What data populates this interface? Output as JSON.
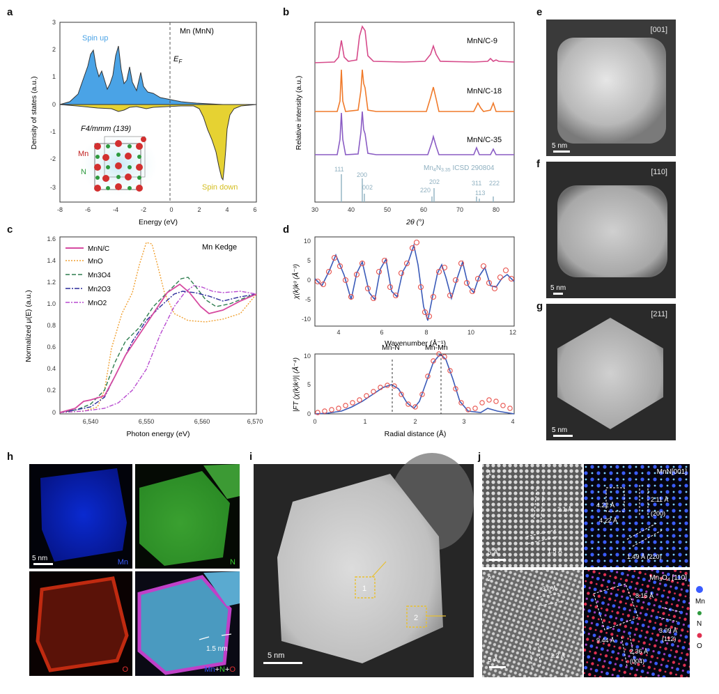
{
  "colors": {
    "spin_up": "#4aa3e6",
    "spin_down": "#e6d232",
    "mnn_c9": "#d64a8a",
    "mnn_c18": "#f07a2a",
    "mnn_c35": "#8a5cc4",
    "ref_line": "#8fb0c0",
    "mnn_c": "#d64aa0",
    "mno": "#f0a030",
    "mn3o4": "#2e7d4f",
    "mn2o3": "#2a2a9a",
    "mno2": "#b84ad0",
    "exp": "#e8504a",
    "fit": "#3a5ab8",
    "inset_box": "#e8c030",
    "overlay_mag": "#d040d0"
  },
  "panel_letters": [
    "a",
    "b",
    "c",
    "d",
    "e",
    "f",
    "g",
    "h",
    "i",
    "j"
  ],
  "panel_a": {
    "title": "Mn (MnN)",
    "ylabel": "Density of states (a.u.)",
    "xlabel": "Energy (eV)",
    "spin_up_label": "Spin up",
    "spin_down_label": "Spin down",
    "ef_label": "E",
    "ef_sub": "F",
    "space_group": "F4/mmm (139)",
    "mn_label": "Mn",
    "n_label": "N",
    "xticks": [
      "-8",
      "-6",
      "-4",
      "-2",
      "0",
      "2",
      "4",
      "6"
    ],
    "yticks": [
      "3",
      "2",
      "1",
      "0",
      "-1",
      "-2",
      "-3"
    ]
  },
  "panel_b": {
    "ylabel": "Relative intensity (a.u.)",
    "xlabel": "2θ (°)",
    "series_labels": [
      "MnN/C-9",
      "MnN/C-18",
      "MnN/C-35"
    ],
    "ref_label": "Mn",
    "ref_sub1": "4",
    "ref_mid": "N",
    "ref_sub2": "3.35",
    "ref_tail": " ICSD 290804",
    "peak_labels": [
      "111",
      "200",
      "002",
      "220",
      "202",
      "311",
      "113",
      "222"
    ],
    "xticks": [
      "30",
      "40",
      "50",
      "60",
      "70",
      "80"
    ]
  },
  "panel_c": {
    "title": "Mn Kedge",
    "ylabel": "Normalized μ(E) (a.u.)",
    "xlabel": "Photon energy (eV)",
    "legend": [
      "MnN/C",
      "MnO",
      "Mn3O4",
      "Mn2O3",
      "MnO2"
    ],
    "xticks": [
      "6,540",
      "6,550",
      "6,560",
      "6,570"
    ],
    "yticks": [
      "1.6",
      "1.4",
      "1.2",
      "1.0",
      "0.8",
      "0.6",
      "0.4",
      "0.2",
      "0"
    ]
  },
  "panel_d": {
    "top_ylabel": "χ(k)k³ (Å⁻³)",
    "top_xlabel": "Wavenumber (Å⁻¹)",
    "top_xticks": [
      "4",
      "6",
      "8",
      "10",
      "12"
    ],
    "top_yticks": [
      "10",
      "5",
      "0",
      "-5",
      "-10"
    ],
    "bot_ylabel": "|FT (χ(k)k³)| (Å⁻⁴)",
    "bot_xlabel": "Radial distance (Å)",
    "bot_xticks": [
      "0",
      "1",
      "2",
      "3",
      "4"
    ],
    "bot_yticks": [
      "10",
      "5",
      "0"
    ],
    "mnn_label": "Mn-N",
    "mnmn_label": "Mn-Mn"
  },
  "panel_e": {
    "zone": "[001]",
    "scale": "5 nm"
  },
  "panel_f": {
    "zone": "[110]",
    "scale": "5 nm"
  },
  "panel_g": {
    "zone": "[211]",
    "scale": "5 nm"
  },
  "panel_h": {
    "mn": "Mn",
    "n": "N",
    "o": "O",
    "combo_mn": "Mn",
    "combo_plus1": "+",
    "combo_n": "N",
    "combo_plus2": "+",
    "combo_o": "O",
    "scale": "5 nm",
    "shell": "1.5 nm"
  },
  "panel_i": {
    "scale": "5 nm",
    "box1": "1",
    "box2": "2"
  },
  "panel_j": {
    "n1": "1",
    "n2": "2",
    "scale1": "5 Å",
    "scale2": "5 Å",
    "d1a": "2.1 Å",
    "d1b": "1.5 Å",
    "d2a": "3.0 Å",
    "d2b": "2.2 Å",
    "mnn_title": "MnN[001]",
    "mnn_d1": "2.11 Å",
    "mnn_d1h": "(200)",
    "mnn_d2": "4.22 Å",
    "mnn_d3": "4.22 Å",
    "mnn_d4": "1.49 Å (220)",
    "mno_title": "Mn",
    "mno_sub1": "3",
    "mno_mid": "O",
    "mno_sub2": "4",
    "mno_tail": " [110]",
    "mno_d1": "8.15 Å",
    "mno_d2": "9.44 Å",
    "mno_d3": "3.09 Å",
    "mno_d3h": "(112)",
    "mno_d4": "2.36 Å",
    "mno_d4h": "(004)",
    "legend": [
      "Mn",
      "N",
      "O"
    ]
  }
}
